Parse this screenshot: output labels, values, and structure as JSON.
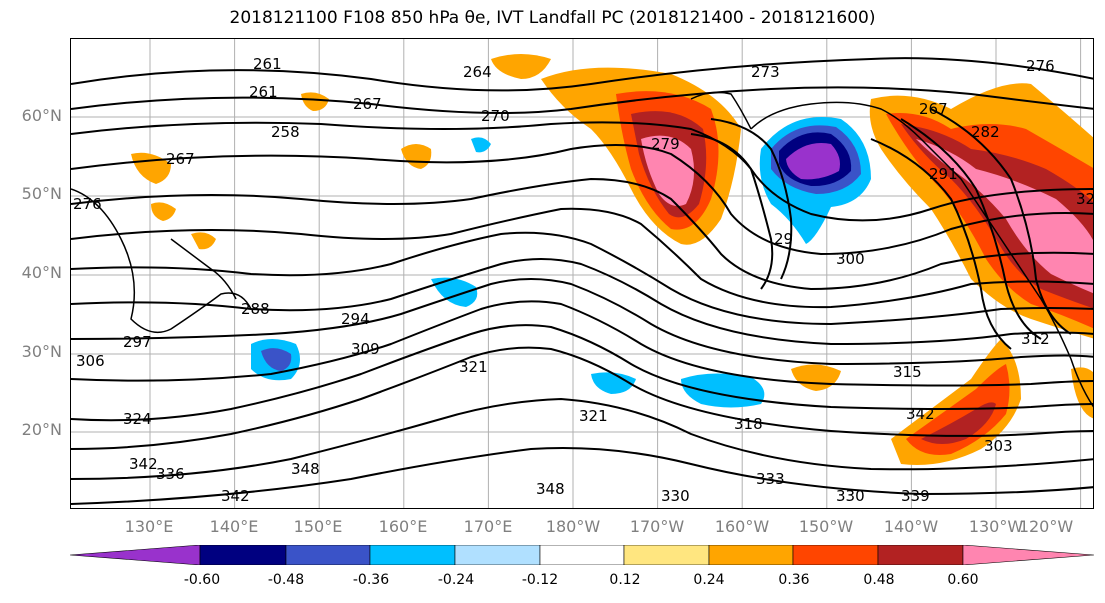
{
  "title": "2018121100 F108 850 hPa θe, IVT Landfall PC (2018121400 - 2018121600)",
  "lat_labels": [
    "60°N",
    "50°N",
    "40°N",
    "30°N",
    "20°N"
  ],
  "lon_labels": [
    "130°E",
    "140°E",
    "150°E",
    "160°E",
    "170°E",
    "180°W",
    "170°W",
    "160°W",
    "150°W",
    "140°W",
    "130°W",
    "120°W"
  ],
  "contour_labels": [
    "261",
    "261",
    "258",
    "264",
    "267",
    "270",
    "273",
    "276",
    "279",
    "282",
    "291",
    "29",
    "300",
    "276",
    "288",
    "294",
    "309",
    "306",
    "297",
    "321",
    "321",
    "318",
    "324",
    "342",
    "336",
    "348",
    "342",
    "348",
    "330",
    "333",
    "330",
    "339",
    "342",
    "315",
    "312",
    "303",
    "32",
    "267",
    "267"
  ],
  "colorbar": {
    "levels": [
      "-0.60",
      "-0.48",
      "-0.36",
      "-0.24",
      "-0.12",
      "0.12",
      "0.24",
      "0.36",
      "0.48",
      "0.60"
    ],
    "colors": [
      "#9932CC",
      "#000080",
      "#3A53C8",
      "#00BFFF",
      "#B0E0FF",
      "#FFFFFF",
      "#FFE680",
      "#FFA500",
      "#FF4500",
      "#B22222",
      "#FF85B0"
    ]
  }
}
